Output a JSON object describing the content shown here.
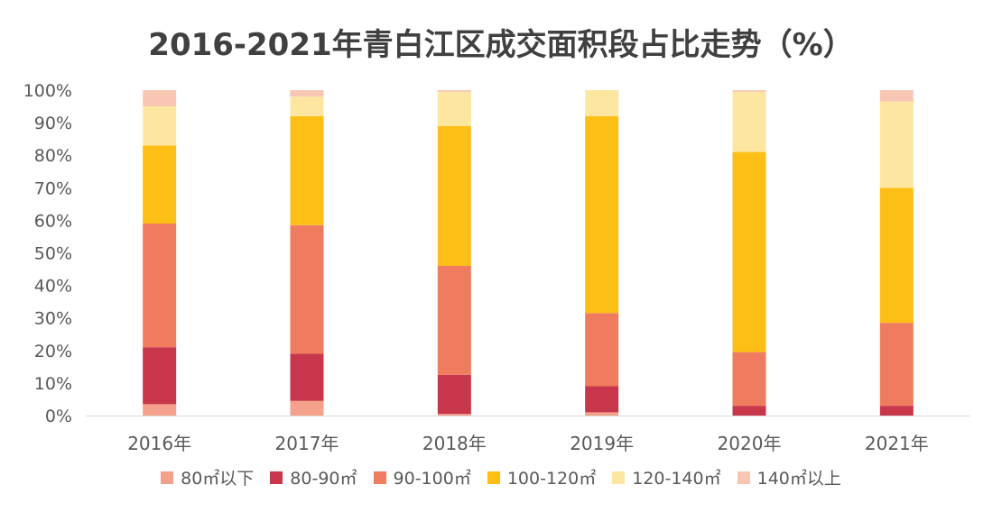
{
  "chart_data": {
    "type": "bar",
    "stacked": true,
    "title": "2016-2021年青白江区成交面积段占比走势（%）",
    "categories": [
      "2016年",
      "2017年",
      "2018年",
      "2019年",
      "2020年",
      "2021年"
    ],
    "ylim": [
      0,
      100
    ],
    "yticks": [
      "0%",
      "10%",
      "20%",
      "30%",
      "40%",
      "50%",
      "60%",
      "70%",
      "80%",
      "90%",
      "100%"
    ],
    "legend_position": "bottom",
    "series": [
      {
        "name": "80㎡以下",
        "color": "#F4A18B",
        "values": [
          3.5,
          4.5,
          0.5,
          1,
          0,
          0
        ]
      },
      {
        "name": "80-90㎡",
        "color": "#C8364B",
        "values": [
          17.5,
          14.5,
          12,
          8,
          3,
          3
        ]
      },
      {
        "name": "90-100㎡",
        "color": "#EF7C5E",
        "values": [
          38,
          39.5,
          33.5,
          22.5,
          16.5,
          25.5
        ]
      },
      {
        "name": "100-120㎡",
        "color": "#FDBE16",
        "values": [
          24,
          33.5,
          43,
          60.5,
          61.5,
          41.5
        ]
      },
      {
        "name": "120-140㎡",
        "color": "#FDE7A0",
        "values": [
          12,
          6,
          10.5,
          8,
          18.5,
          26.5
        ]
      },
      {
        "name": "140㎡以上",
        "color": "#F9C6B4",
        "values": [
          5,
          2,
          0.5,
          0,
          0.5,
          3.5
        ]
      }
    ]
  }
}
